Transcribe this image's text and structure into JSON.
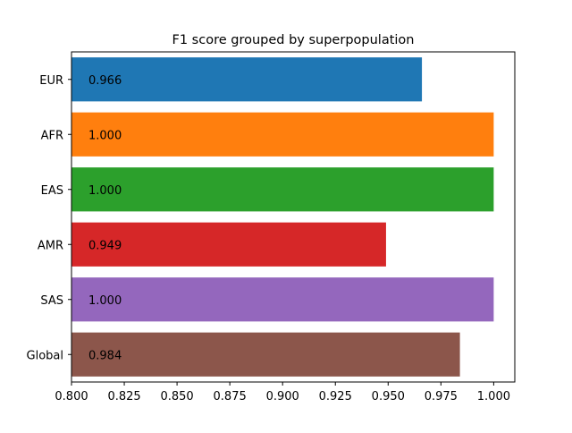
{
  "chart_data": {
    "type": "bar",
    "orientation": "horizontal",
    "title": "F1 score grouped by superpopulation",
    "xlabel": "",
    "ylabel": "",
    "categories": [
      "EUR",
      "AFR",
      "EAS",
      "AMR",
      "SAS",
      "Global"
    ],
    "values": [
      0.966,
      1.0,
      1.0,
      0.949,
      1.0,
      0.984
    ],
    "value_labels": [
      "0.966",
      "1.000",
      "1.000",
      "0.949",
      "1.000",
      "0.984"
    ],
    "colors": [
      "#1f77b4",
      "#ff7f0e",
      "#2ca02c",
      "#d62728",
      "#9467bd",
      "#8c564b"
    ],
    "xlim": [
      0.8,
      1.01
    ],
    "xticks": [
      0.8,
      0.825,
      0.85,
      0.875,
      0.9,
      0.925,
      0.95,
      0.975,
      1.0
    ],
    "xtick_labels": [
      "0.800",
      "0.825",
      "0.850",
      "0.875",
      "0.900",
      "0.925",
      "0.950",
      "0.975",
      "1.000"
    ],
    "grid": false,
    "legend": "none"
  }
}
